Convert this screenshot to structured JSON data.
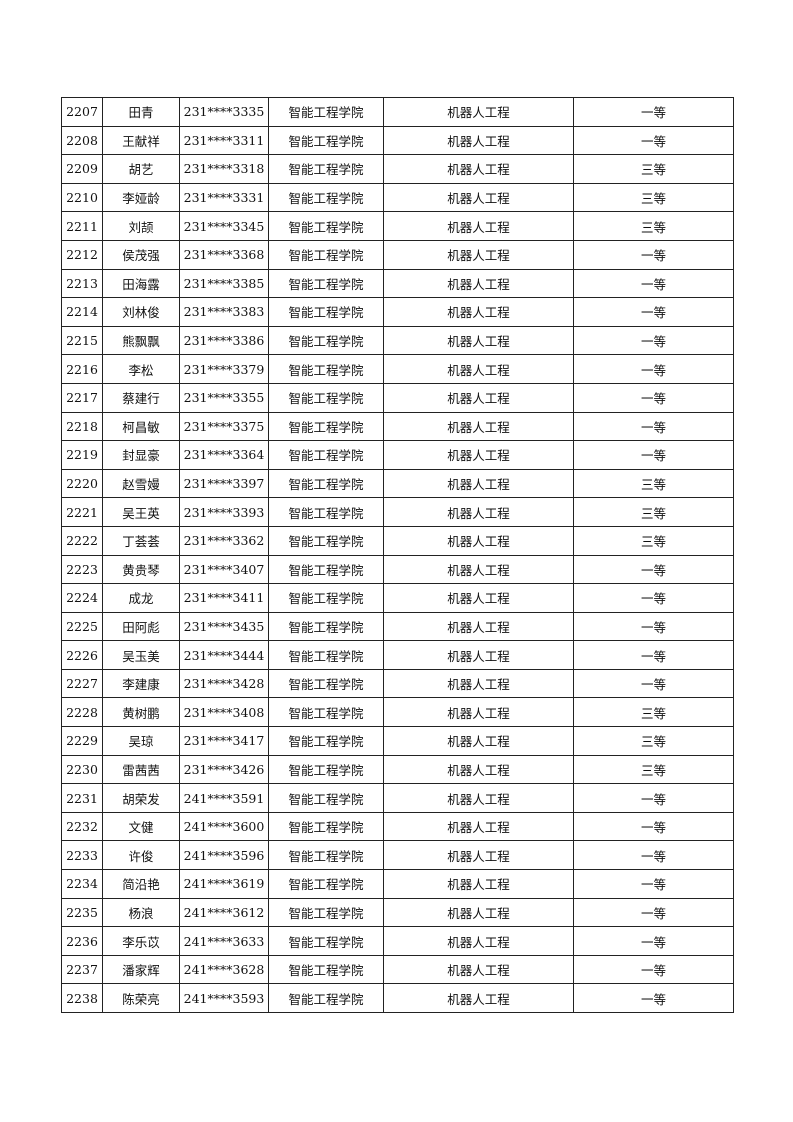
{
  "table": {
    "rows": [
      [
        "2207",
        "田青",
        "231****3335",
        "智能工程学院",
        "机器人工程",
        "一等"
      ],
      [
        "2208",
        "王献祥",
        "231****3311",
        "智能工程学院",
        "机器人工程",
        "一等"
      ],
      [
        "2209",
        "胡艺",
        "231****3318",
        "智能工程学院",
        "机器人工程",
        "三等"
      ],
      [
        "2210",
        "李娅龄",
        "231****3331",
        "智能工程学院",
        "机器人工程",
        "三等"
      ],
      [
        "2211",
        "刘颉",
        "231****3345",
        "智能工程学院",
        "机器人工程",
        "三等"
      ],
      [
        "2212",
        "侯茂强",
        "231****3368",
        "智能工程学院",
        "机器人工程",
        "一等"
      ],
      [
        "2213",
        "田海露",
        "231****3385",
        "智能工程学院",
        "机器人工程",
        "一等"
      ],
      [
        "2214",
        "刘林俊",
        "231****3383",
        "智能工程学院",
        "机器人工程",
        "一等"
      ],
      [
        "2215",
        "熊飘飘",
        "231****3386",
        "智能工程学院",
        "机器人工程",
        "一等"
      ],
      [
        "2216",
        "李松",
        "231****3379",
        "智能工程学院",
        "机器人工程",
        "一等"
      ],
      [
        "2217",
        "蔡建行",
        "231****3355",
        "智能工程学院",
        "机器人工程",
        "一等"
      ],
      [
        "2218",
        "柯昌敏",
        "231****3375",
        "智能工程学院",
        "机器人工程",
        "一等"
      ],
      [
        "2219",
        "封显豪",
        "231****3364",
        "智能工程学院",
        "机器人工程",
        "一等"
      ],
      [
        "2220",
        "赵雪嫚",
        "231****3397",
        "智能工程学院",
        "机器人工程",
        "三等"
      ],
      [
        "2221",
        "吴王英",
        "231****3393",
        "智能工程学院",
        "机器人工程",
        "三等"
      ],
      [
        "2222",
        "丁荟荟",
        "231****3362",
        "智能工程学院",
        "机器人工程",
        "三等"
      ],
      [
        "2223",
        "黄贵琴",
        "231****3407",
        "智能工程学院",
        "机器人工程",
        "一等"
      ],
      [
        "2224",
        "成龙",
        "231****3411",
        "智能工程学院",
        "机器人工程",
        "一等"
      ],
      [
        "2225",
        "田阿彪",
        "231****3435",
        "智能工程学院",
        "机器人工程",
        "一等"
      ],
      [
        "2226",
        "吴玉美",
        "231****3444",
        "智能工程学院",
        "机器人工程",
        "一等"
      ],
      [
        "2227",
        "李建康",
        "231****3428",
        "智能工程学院",
        "机器人工程",
        "一等"
      ],
      [
        "2228",
        "黄树鹏",
        "231****3408",
        "智能工程学院",
        "机器人工程",
        "三等"
      ],
      [
        "2229",
        "吴琼",
        "231****3417",
        "智能工程学院",
        "机器人工程",
        "三等"
      ],
      [
        "2230",
        "雷茜茜",
        "231****3426",
        "智能工程学院",
        "机器人工程",
        "三等"
      ],
      [
        "2231",
        "胡荣发",
        "241****3591",
        "智能工程学院",
        "机器人工程",
        "一等"
      ],
      [
        "2232",
        "文健",
        "241****3600",
        "智能工程学院",
        "机器人工程",
        "一等"
      ],
      [
        "2233",
        "许俊",
        "241****3596",
        "智能工程学院",
        "机器人工程",
        "一等"
      ],
      [
        "2234",
        "简沿艳",
        "241****3619",
        "智能工程学院",
        "机器人工程",
        "一等"
      ],
      [
        "2235",
        "杨浪",
        "241****3612",
        "智能工程学院",
        "机器人工程",
        "一等"
      ],
      [
        "2236",
        "李乐苡",
        "241****3633",
        "智能工程学院",
        "机器人工程",
        "一等"
      ],
      [
        "2237",
        "潘家辉",
        "241****3628",
        "智能工程学院",
        "机器人工程",
        "一等"
      ],
      [
        "2238",
        "陈荣亮",
        "241****3593",
        "智能工程学院",
        "机器人工程",
        "一等"
      ]
    ]
  }
}
